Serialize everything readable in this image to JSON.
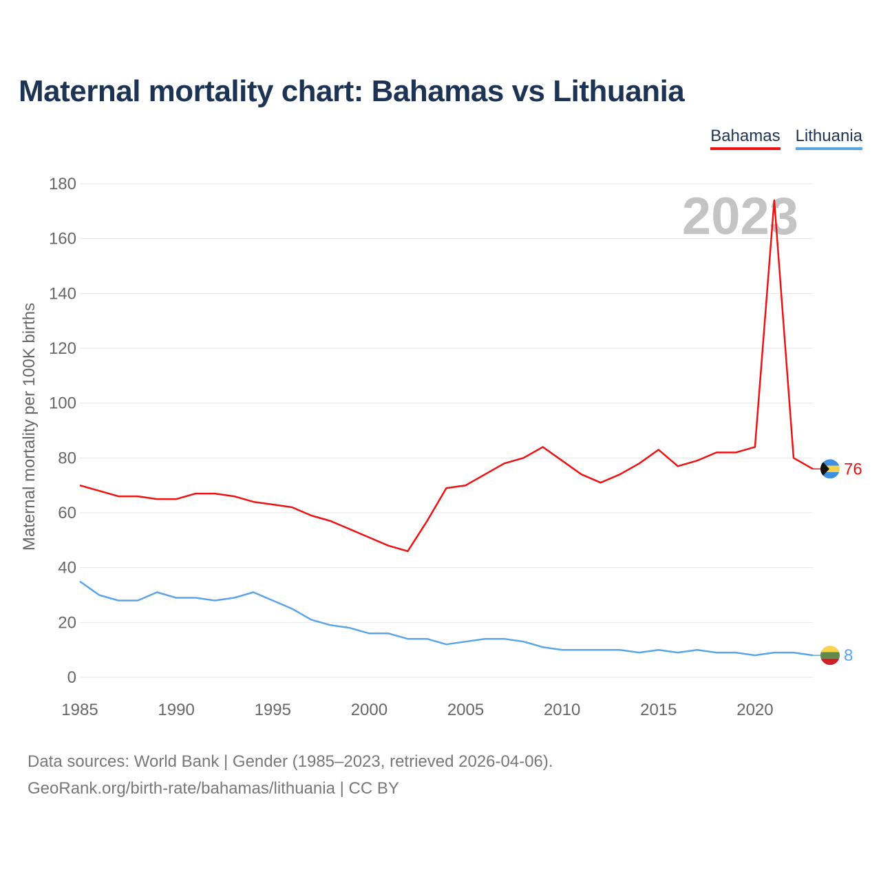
{
  "title": "Maternal mortality chart: Bahamas vs Lithuania",
  "legend": {
    "bahamas": "Bahamas",
    "lithuania": "Lithuania"
  },
  "year_label": "2023",
  "footer": {
    "line1": "Data sources: World Bank | Gender (1985–2023, retrieved 2026-04-06).",
    "line2": "GeoRank.org/birth-rate/bahamas/lithuania | CC BY"
  },
  "chart_data": {
    "type": "line",
    "title": "Maternal mortality chart: Bahamas vs Lithuania",
    "xlabel": "",
    "ylabel": "Maternal mortality per 100K births",
    "xlim": [
      1985,
      2023
    ],
    "ylim": [
      0,
      180
    ],
    "x_ticks": [
      1985,
      1990,
      1995,
      2000,
      2005,
      2010,
      2015,
      2020
    ],
    "y_ticks": [
      0,
      20,
      40,
      60,
      80,
      100,
      120,
      140,
      160,
      180
    ],
    "grid": true,
    "legend_position": "top-right",
    "x": [
      1985,
      1986,
      1987,
      1988,
      1989,
      1990,
      1991,
      1992,
      1993,
      1994,
      1995,
      1996,
      1997,
      1998,
      1999,
      2000,
      2001,
      2002,
      2003,
      2004,
      2005,
      2006,
      2007,
      2008,
      2009,
      2010,
      2011,
      2012,
      2013,
      2014,
      2015,
      2016,
      2017,
      2018,
      2019,
      2020,
      2021,
      2022,
      2023
    ],
    "series": [
      {
        "name": "Bahamas",
        "color": "#ee1111",
        "end_label": "76",
        "values": [
          70,
          68,
          66,
          66,
          65,
          65,
          67,
          67,
          66,
          64,
          63,
          62,
          59,
          57,
          54,
          51,
          48,
          46,
          57,
          69,
          70,
          74,
          78,
          80,
          84,
          79,
          74,
          71,
          74,
          78,
          83,
          77,
          79,
          82,
          82,
          84,
          174,
          80,
          76
        ]
      },
      {
        "name": "Lithuania",
        "color": "#5aa5e8",
        "end_label": "8",
        "values": [
          35,
          30,
          28,
          28,
          31,
          29,
          29,
          28,
          29,
          31,
          28,
          25,
          21,
          19,
          18,
          16,
          16,
          14,
          14,
          12,
          13,
          14,
          14,
          13,
          11,
          10,
          10,
          10,
          10,
          9,
          10,
          9,
          10,
          9,
          9,
          8,
          9,
          9,
          8
        ]
      }
    ]
  }
}
